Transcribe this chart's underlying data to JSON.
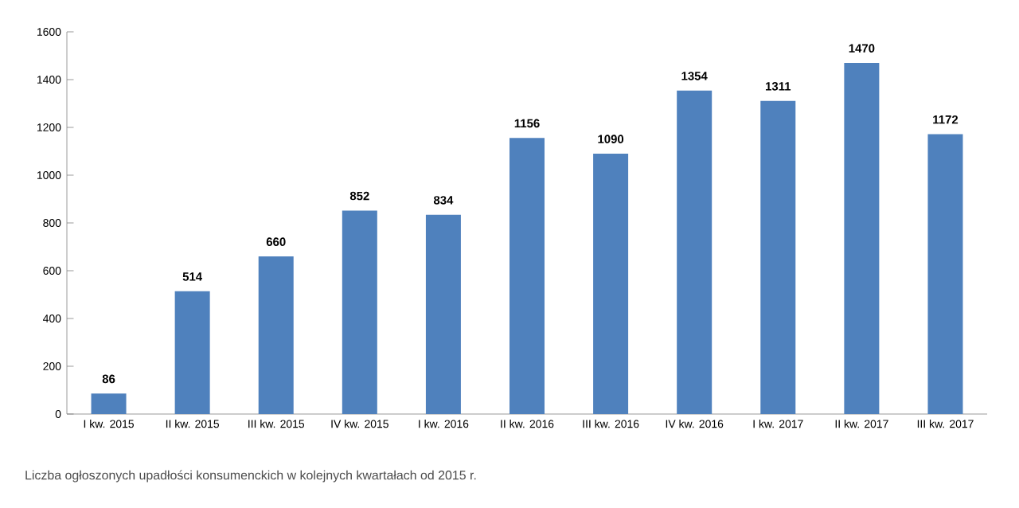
{
  "chart_data": {
    "type": "bar",
    "categories": [
      "I kw. 2015",
      "II kw. 2015",
      "III kw. 2015",
      "IV kw. 2015",
      "I kw. 2016",
      "II kw. 2016",
      "III kw. 2016",
      "IV kw. 2016",
      "I kw. 2017",
      "II kw. 2017",
      "III kw. 2017"
    ],
    "values": [
      86,
      514,
      660,
      852,
      834,
      1156,
      1090,
      1354,
      1311,
      1470,
      1172
    ],
    "color": "#4f81bd",
    "ylim": [
      0,
      1600
    ],
    "yticks": [
      0,
      200,
      400,
      600,
      800,
      1000,
      1200,
      1400,
      1600
    ],
    "data_labels": true,
    "grid": false,
    "annotations": [
      "Liczba ogłoszonych upadłości konsumenckich w kolejnych kwartałach od 2015 r."
    ]
  }
}
